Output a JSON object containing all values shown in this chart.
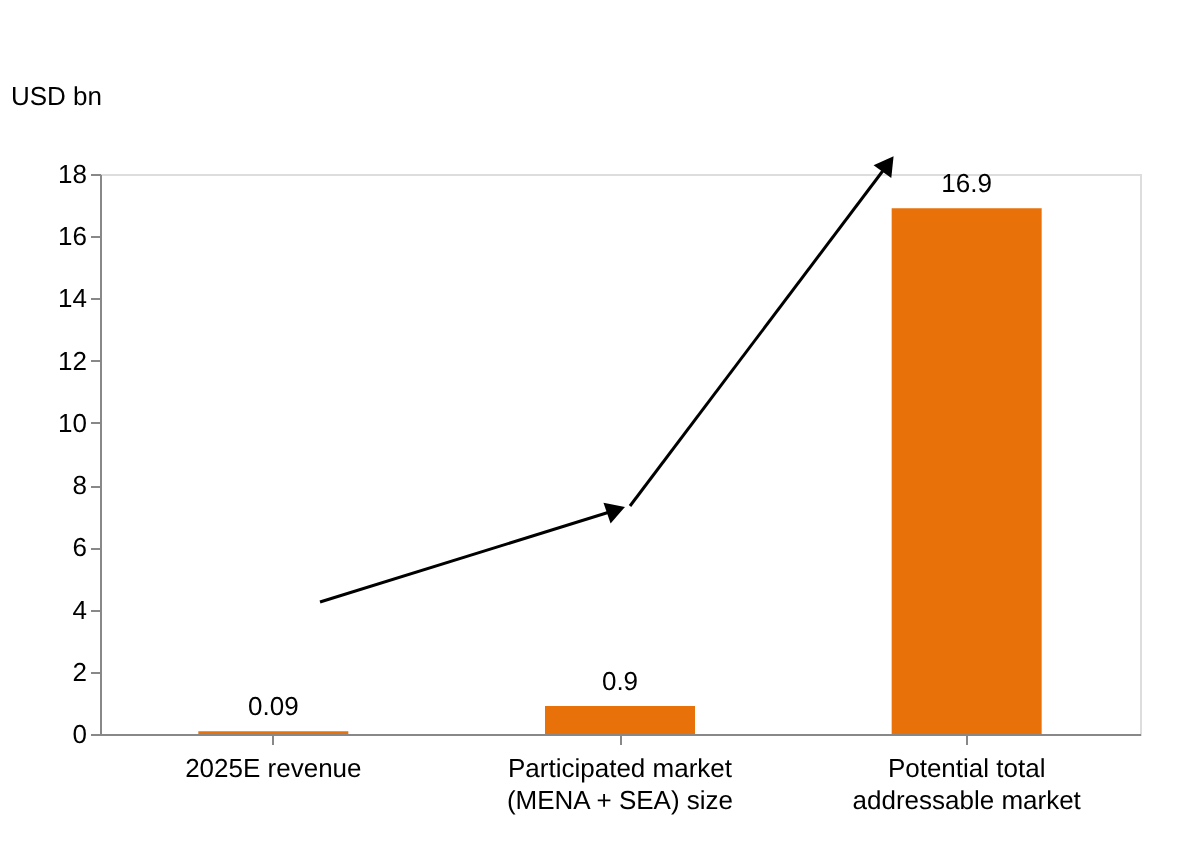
{
  "chart_data": {
    "type": "bar",
    "ylabel": "USD bn",
    "categories": [
      "2025E revenue",
      "Participated market (MENA + SEA) size",
      "Potential total addressable market"
    ],
    "values": [
      0.09,
      0.9,
      16.9
    ],
    "color": "#e8710a",
    "ylim": [
      0,
      18
    ],
    "yticks": [
      0,
      2,
      4,
      6,
      8,
      10,
      12,
      14,
      16,
      18
    ],
    "grid": false,
    "data_labels": true
  }
}
